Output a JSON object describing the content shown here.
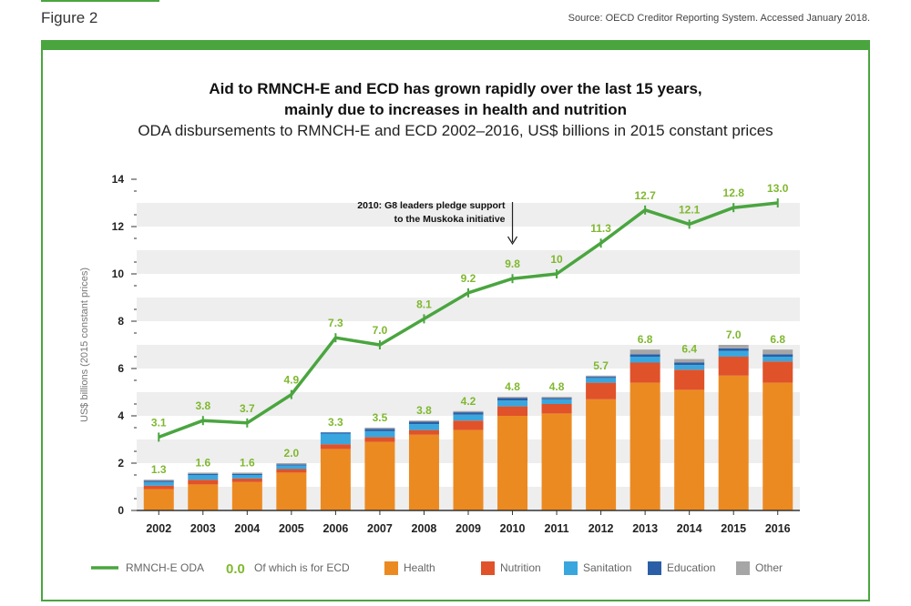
{
  "figure_label": "Figure 2",
  "source": "Source: OECD Creditor Reporting System. Accessed January 2018.",
  "colors": {
    "frame": "#4aa53f",
    "line": "#4aa53f",
    "line_label": "#7fb82f",
    "Health": "#ec8a22",
    "Nutrition": "#e0522a",
    "Sanitation": "#3aa6de",
    "Education": "#2a5fa8",
    "Other": "#a6a6a6",
    "band": "#eeeeee"
  },
  "chart_data": {
    "type": "bar",
    "title": "Aid to RMNCH-E and ECD has grown rapidly over the last 15 years, mainly due to increases in health and nutrition",
    "title_lines": [
      "Aid to RMNCH-E and ECD has grown rapidly over the last 15 years,",
      "mainly due to increases in health and nutrition"
    ],
    "subtitle": "ODA disbursements to RMNCH-E and ECD 2002–2016, US$ billions in 2015 constant prices",
    "xlabel": "",
    "ylabel": "US$ billions (2015 constant prices)",
    "ylim": [
      0,
      14
    ],
    "yticks": [
      0,
      2,
      4,
      6,
      8,
      10,
      12,
      14
    ],
    "grid": "alternating horizontal bands",
    "legend_position": "bottom",
    "categories": [
      "2002",
      "2003",
      "2004",
      "2005",
      "2006",
      "2007",
      "2008",
      "2009",
      "2010",
      "2011",
      "2012",
      "2013",
      "2014",
      "2015",
      "2016"
    ],
    "series": [
      {
        "name": "Health",
        "type": "bar",
        "values": [
          0.9,
          1.1,
          1.2,
          1.6,
          2.6,
          2.9,
          3.2,
          3.4,
          4.0,
          4.1,
          4.7,
          5.4,
          5.1,
          5.7,
          5.4
        ]
      },
      {
        "name": "Nutrition",
        "type": "bar",
        "values": [
          0.15,
          0.2,
          0.15,
          0.15,
          0.2,
          0.2,
          0.2,
          0.4,
          0.4,
          0.4,
          0.7,
          0.85,
          0.85,
          0.8,
          0.9
        ]
      },
      {
        "name": "Sanitation",
        "type": "bar",
        "values": [
          0.15,
          0.2,
          0.15,
          0.15,
          0.45,
          0.25,
          0.25,
          0.25,
          0.25,
          0.2,
          0.2,
          0.25,
          0.2,
          0.25,
          0.2
        ]
      },
      {
        "name": "Education",
        "type": "bar",
        "values": [
          0.05,
          0.05,
          0.05,
          0.05,
          0.05,
          0.1,
          0.1,
          0.1,
          0.1,
          0.05,
          0.05,
          0.1,
          0.1,
          0.1,
          0.1
        ]
      },
      {
        "name": "Other",
        "type": "bar",
        "values": [
          0.05,
          0.05,
          0.05,
          0.05,
          0.0,
          0.05,
          0.05,
          0.05,
          0.05,
          0.05,
          0.05,
          0.2,
          0.15,
          0.15,
          0.2
        ]
      },
      {
        "name": "RMNCH-E ODA",
        "type": "line",
        "values": [
          3.1,
          3.8,
          3.7,
          4.9,
          7.3,
          7.0,
          8.1,
          9.2,
          9.8,
          10.0,
          11.3,
          12.7,
          12.1,
          12.8,
          13.0
        ]
      }
    ],
    "ecd_totals": [
      1.3,
      1.6,
      1.6,
      2.0,
      3.3,
      3.5,
      3.8,
      4.2,
      4.8,
      4.8,
      5.7,
      6.8,
      6.4,
      7.0,
      6.8
    ],
    "line_labels": [
      "3.1",
      "3.8",
      "3.7",
      "4.9",
      "7.3",
      "7.0",
      "8.1",
      "9.2",
      "9.8",
      "10",
      "11.3",
      "12.7",
      "12.1",
      "12.8",
      "13.0"
    ],
    "bar_labels": [
      "1.3",
      "1.6",
      "1.6",
      "2.0",
      "3.3",
      "3.5",
      "3.8",
      "4.2",
      "4.8",
      "4.8",
      "5.7",
      "6.8",
      "6.4",
      "7.0",
      "6.8"
    ],
    "annotation": {
      "lines": [
        "2010: G8 leaders pledge support",
        "to the Muskoka initiative"
      ],
      "category": "2010"
    },
    "legend": [
      {
        "label": "RMNCH-E ODA",
        "kind": "line"
      },
      {
        "label": "Of which is for ECD",
        "kind": "value",
        "sample": "0.0"
      },
      {
        "label": "Health",
        "kind": "box"
      },
      {
        "label": "Nutrition",
        "kind": "box"
      },
      {
        "label": "Sanitation",
        "kind": "box"
      },
      {
        "label": "Education",
        "kind": "box"
      },
      {
        "label": "Other",
        "kind": "box"
      }
    ]
  }
}
